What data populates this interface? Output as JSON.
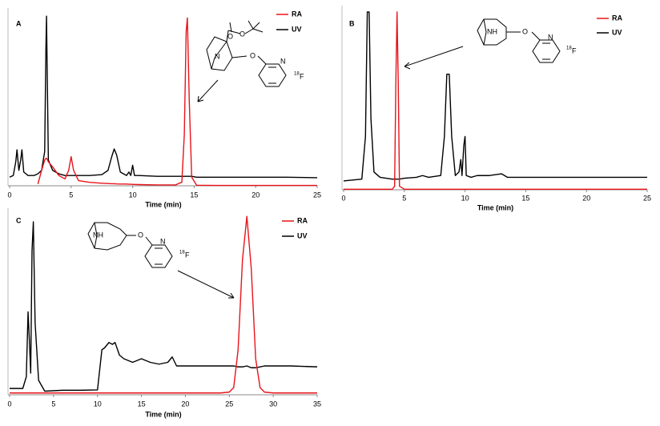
{
  "chart_data": [
    {
      "type": "line",
      "title": "A",
      "xlabel": "Time (min)",
      "legend": "upper right",
      "xlim": [
        0,
        25
      ],
      "xticks": [
        0,
        5,
        10,
        15,
        20,
        25
      ],
      "ylim": [
        0,
        100
      ],
      "annotations": [
        "O",
        "O",
        "N",
        "O",
        "N",
        "18",
        "F"
      ],
      "x": [
        0,
        0.3,
        0.5,
        0.6,
        0.75,
        0.9,
        1.0,
        1.15,
        1.5,
        2.0,
        2.3,
        2.6,
        2.85,
        2.95,
        3.0,
        3.05,
        3.15,
        3.5,
        4.0,
        4.5,
        4.8,
        5.0,
        5.2,
        5.6,
        6.5,
        7.5,
        8.0,
        8.3,
        8.5,
        8.7,
        9.0,
        9.5,
        9.7,
        9.85,
        10.0,
        10.15,
        10.5,
        12.0,
        13.5,
        13.8,
        14.0,
        14.2,
        14.35,
        14.45,
        14.6,
        14.8,
        15.2,
        17,
        20,
        22.5,
        25
      ],
      "series": [
        {
          "name": "RA",
          "color": "#e8141b",
          "values": [
            null,
            null,
            null,
            null,
            null,
            null,
            null,
            null,
            null,
            null,
            1,
            9,
            15,
            16,
            16,
            15.5,
            14,
            11,
            6,
            4,
            9,
            17,
            9,
            3,
            2,
            1.5,
            1.3,
            1.2,
            1.2,
            1.1,
            1,
            1,
            0.9,
            0.9,
            0.8,
            0.8,
            0.7,
            0.5,
            0.5,
            1.5,
            2,
            30,
            90,
            98,
            50,
            5,
            0.3,
            0.2,
            0.2,
            0.2,
            0.2
          ]
        },
        {
          "name": "UV",
          "color": "#000000",
          "values": [
            5,
            6,
            14,
            21,
            9,
            15,
            21,
            8,
            6,
            6,
            7,
            9,
            20,
            80,
            99,
            70,
            15,
            9,
            7,
            6,
            6,
            6,
            6,
            6,
            6,
            6.5,
            9,
            17,
            21.5,
            18,
            8,
            6,
            8,
            6,
            12,
            6,
            6,
            5.5,
            5.5,
            5.5,
            5.5,
            5.5,
            5.5,
            5.5,
            5.5,
            5.5,
            5,
            5,
            5,
            5,
            4.7
          ]
        }
      ]
    },
    {
      "type": "line",
      "title": "B",
      "xlabel": "Time (min)",
      "legend": "upper right",
      "xlim": [
        0,
        25
      ],
      "xticks": [
        0,
        5,
        10,
        15,
        20,
        25
      ],
      "ylim": [
        0,
        100
      ],
      "annotations": [
        "NH",
        "O",
        "N",
        "18",
        "F"
      ],
      "x": [
        0,
        1.5,
        1.8,
        1.95,
        2.1,
        2.25,
        2.5,
        3,
        4,
        4.2,
        4.3,
        4.4,
        4.5,
        4.6,
        5,
        6,
        6.5,
        7,
        8,
        8.3,
        8.5,
        8.7,
        8.9,
        9.2,
        9.5,
        9.65,
        9.75,
        9.9,
        10.0,
        10.1,
        10.5,
        11,
        12,
        13,
        13.5,
        15,
        20,
        25
      ],
      "series": [
        {
          "name": "RA",
          "color": "#e8141b",
          "values": [
            0.3,
            0.3,
            0.3,
            0.3,
            0.3,
            0.3,
            0.3,
            0.3,
            0.3,
            2,
            60,
            100,
            60,
            2,
            0.3,
            0.3,
            0.3,
            0.3,
            0.3,
            0.3,
            0.3,
            0.3,
            0.3,
            0.3,
            0.3,
            0.3,
            0.3,
            0.3,
            0.3,
            0.3,
            0.3,
            0.3,
            0.3,
            0.3,
            0.3,
            0.3,
            0.3,
            0.3
          ]
        },
        {
          "name": "UV",
          "color": "#000000",
          "values": [
            5,
            6,
            30,
            100,
            100,
            40,
            10,
            7,
            6,
            6,
            6,
            6,
            6,
            6,
            6.5,
            7,
            8,
            7,
            8,
            30,
            65,
            65,
            30,
            8,
            10,
            17,
            8,
            25,
            30,
            8,
            7,
            8,
            8,
            9,
            7,
            7,
            7,
            7
          ]
        }
      ]
    },
    {
      "type": "line",
      "title": "C",
      "xlabel": "Time (min)",
      "legend": "upper right",
      "xlim": [
        0,
        35
      ],
      "xticks": [
        0,
        5,
        10,
        15,
        20,
        25,
        30,
        35
      ],
      "ylim": [
        0,
        100
      ],
      "annotations": [
        "NH",
        "O",
        "N",
        "18",
        "F"
      ],
      "x": [
        0,
        1.5,
        1.9,
        2.1,
        2.25,
        2.4,
        2.55,
        2.7,
        2.9,
        3.3,
        4,
        6,
        8,
        10,
        10.5,
        10.8,
        11.3,
        11.7,
        12,
        12.5,
        13,
        14,
        15,
        16,
        17,
        18,
        18.5,
        19,
        20,
        22,
        24,
        25,
        25.5,
        26,
        26.5,
        27,
        27.5,
        28,
        28.5,
        29,
        30,
        32,
        35
      ],
      "series": [
        {
          "name": "RA",
          "color": "#e8141b",
          "values": [
            1,
            1,
            1,
            1,
            1,
            1,
            1,
            1,
            1,
            1,
            1,
            1,
            1,
            1,
            1,
            1,
            1,
            1,
            1,
            1,
            1,
            1,
            1,
            1,
            1,
            1,
            1,
            1,
            1,
            1,
            1,
            1.5,
            4,
            25,
            75,
            99,
            70,
            20,
            4,
            1.5,
            1,
            1,
            1
          ]
        },
        {
          "name": "UV",
          "color": "#000000",
          "values": [
            3.5,
            3.5,
            10,
            46,
            30,
            12,
            80,
            96,
            40,
            8,
            2,
            2.5,
            2.5,
            2.7,
            25,
            26,
            29,
            28,
            29,
            22,
            20,
            18,
            20,
            18,
            17,
            18,
            21,
            16,
            16,
            16,
            16,
            16,
            16,
            15.5,
            15.5,
            16,
            15,
            15,
            15.5,
            16,
            16,
            16,
            15.5
          ]
        }
      ]
    }
  ]
}
